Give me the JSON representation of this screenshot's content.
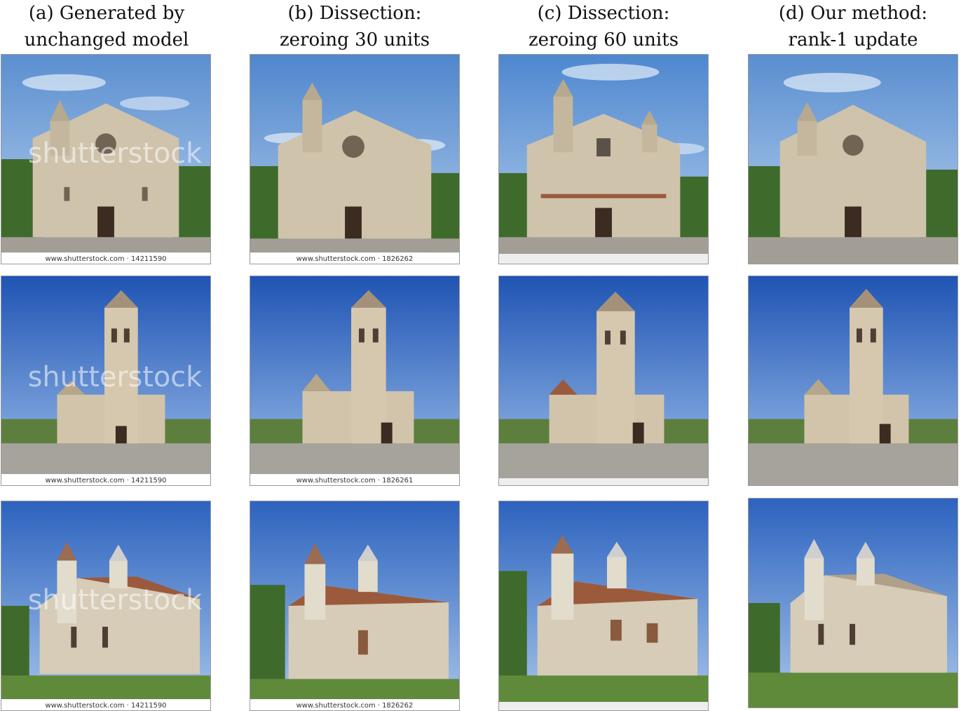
{
  "columns": [
    {
      "line1": "(a) Generated by",
      "line2": "unchanged model"
    },
    {
      "line1": "(b) Dissection:",
      "line2": "zeroing 30 units"
    },
    {
      "line1": "(c) Dissection:",
      "line2": "zeroing 60 units"
    },
    {
      "line1": "(d) Our method:",
      "line2": "rank-1 update"
    }
  ],
  "watermark_text": "shutterstock",
  "captions": {
    "a1": "www.shutterstock.com · 14211590",
    "b1": "www.shutterstock.com · 1826262",
    "c1": "",
    "a2": "www.shutterstock.com · 14211590",
    "b2": "www.shutterstock.com · 1826261",
    "a3": "www.shutterstock.com · 14211590",
    "b3": "www.shutterstock.com · 1826262",
    "c3": ""
  },
  "colors": {
    "sky_top": "#3d74c4",
    "sky_bottom": "#a9c8ea",
    "stone": "#cfc3ac",
    "stone_dark": "#a89a82",
    "roof": "#9b5a3c",
    "tree": "#3e6b2c",
    "ground": "#9e9a92",
    "grass": "#5f8a3a"
  }
}
